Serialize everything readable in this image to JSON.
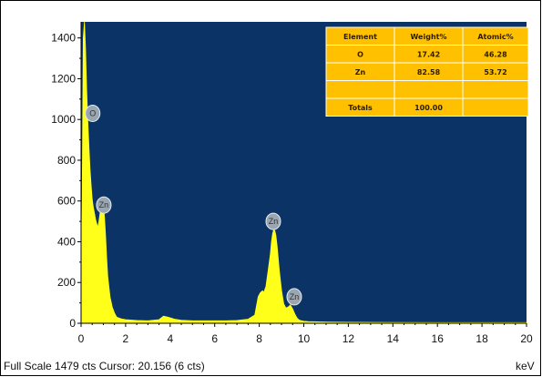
{
  "chart_data": {
    "type": "area",
    "title": "",
    "xlabel": "",
    "ylabel": "",
    "x_unit_label": "keV",
    "xlim": [
      0,
      20
    ],
    "ylim": [
      0,
      1479
    ],
    "x_ticks": [
      0,
      2,
      4,
      6,
      8,
      10,
      12,
      14,
      16,
      18,
      20
    ],
    "y_ticks": [
      0,
      200,
      400,
      600,
      800,
      1000,
      1200,
      1400
    ],
    "grid": false,
    "colors": {
      "plot_bg": "#0b3366",
      "spectrum": "#ffff1a",
      "table_bg": "#ffc000",
      "peak_label_bg": "#9aa6b2"
    },
    "spectrum": {
      "x": [
        0,
        0.05,
        0.1,
        0.15,
        0.2,
        0.25,
        0.3,
        0.35,
        0.4,
        0.45,
        0.5,
        0.55,
        0.6,
        0.65,
        0.7,
        0.75,
        0.8,
        0.85,
        0.9,
        0.95,
        1.0,
        1.05,
        1.1,
        1.15,
        1.2,
        1.3,
        1.4,
        1.5,
        1.6,
        1.8,
        2.0,
        2.5,
        3.0,
        3.5,
        3.7,
        3.9,
        4.2,
        4.5,
        5.0,
        5.5,
        6.0,
        6.5,
        7.0,
        7.5,
        7.8,
        7.95,
        8.05,
        8.15,
        8.2,
        8.3,
        8.4,
        8.5,
        8.55,
        8.6,
        8.65,
        8.7,
        8.75,
        8.8,
        8.85,
        8.9,
        9.0,
        9.1,
        9.2,
        9.3,
        9.4,
        9.5,
        9.6,
        9.7,
        9.8,
        10.0,
        10.2,
        11,
        12,
        14,
        16,
        18,
        20
      ],
      "y": [
        80,
        600,
        1400,
        1479,
        1350,
        1150,
        1000,
        870,
        760,
        680,
        610,
        570,
        540,
        510,
        490,
        470,
        500,
        540,
        580,
        610,
        580,
        520,
        430,
        320,
        230,
        130,
        80,
        50,
        30,
        22,
        18,
        14,
        12,
        18,
        35,
        30,
        20,
        15,
        12,
        12,
        12,
        12,
        14,
        20,
        40,
        130,
        150,
        160,
        150,
        180,
        260,
        340,
        400,
        440,
        460,
        455,
        430,
        380,
        320,
        260,
        160,
        95,
        75,
        80,
        90,
        70,
        45,
        25,
        15,
        10,
        8,
        6,
        5,
        4,
        3,
        3,
        3
      ]
    },
    "peak_labels": [
      {
        "text": "O",
        "x": 0.52,
        "y": 1030
      },
      {
        "text": "Zn",
        "x": 1.02,
        "y": 580
      },
      {
        "text": "Zn",
        "x": 8.63,
        "y": 500
      },
      {
        "text": "Zn",
        "x": 9.57,
        "y": 130
      }
    ],
    "table": {
      "headers": [
        "Element",
        "Weight%",
        "Atomic%"
      ],
      "rows": [
        [
          "O",
          "17.42",
          "46.28"
        ],
        [
          "Zn",
          "82.58",
          "53.72"
        ],
        [
          "",
          "",
          ""
        ],
        [
          "Totals",
          "100.00",
          ""
        ]
      ]
    },
    "footer_text": "Full Scale 1479 cts Cursor: 20.156  (6 cts)"
  }
}
